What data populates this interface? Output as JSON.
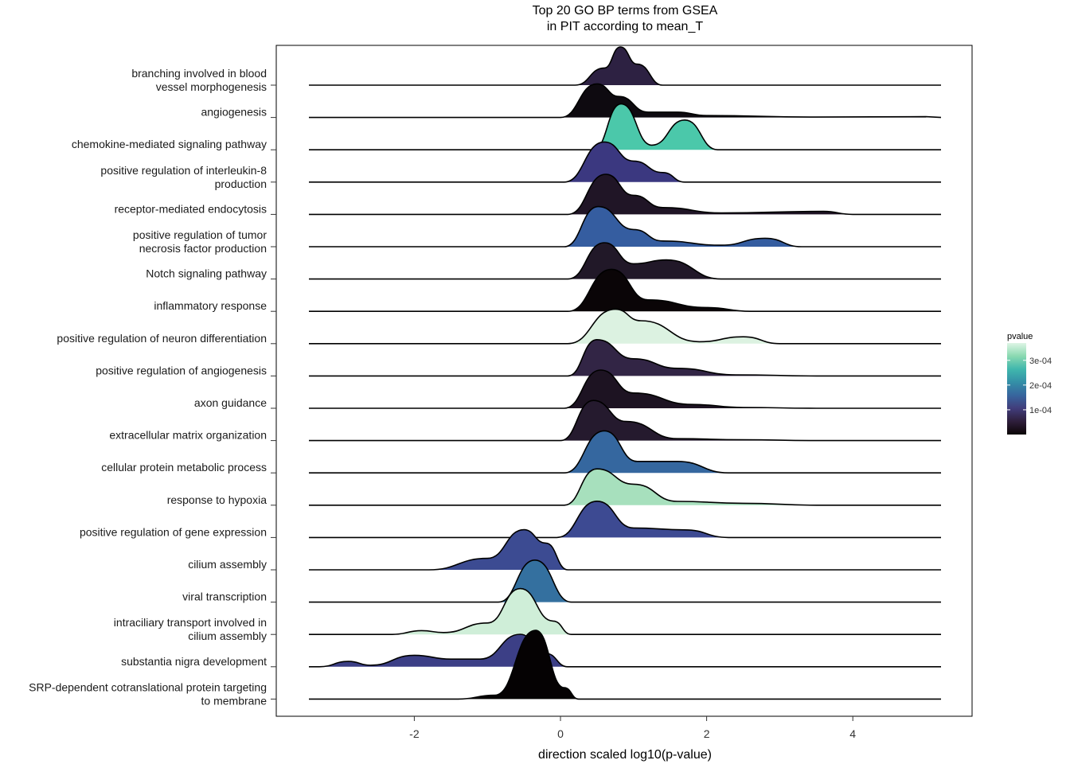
{
  "chart_data": {
    "type": "ridgeline",
    "title": [
      "Top 20 GO BP terms from GSEA",
      "in PIT according to mean_T"
    ],
    "xlabel": "direction scaled log10(p-value)",
    "ylabel": "",
    "xlim": [
      -3.9,
      5.6
    ],
    "x_ticks": [
      -2,
      0,
      2,
      4
    ],
    "x_tick_labels": [
      "-2",
      "0",
      "2",
      "4"
    ],
    "grid": false,
    "legend": {
      "title": "pvalue",
      "position": "right",
      "ticks": [
        0.0001,
        0.0002,
        0.0003
      ],
      "tick_labels": [
        "1e-04",
        "2e-04",
        "3e-04"
      ],
      "range": [
        0,
        0.00037
      ],
      "colors": [
        "#0b0405",
        "#2e1e3b",
        "#413d7b",
        "#37659e",
        "#348fa7",
        "#40b7ad",
        "#8ad9b1",
        "#def5e5"
      ]
    },
    "series": [
      {
        "term": [
          "branching involved in blood",
          "vessel morphogenesis"
        ],
        "pvalue": 8.5e-05,
        "color": "#2d2142",
        "density": [
          [
            0.2,
            0
          ],
          [
            0.6,
            0.45
          ],
          [
            0.82,
            1.0
          ],
          [
            1.05,
            0.55
          ],
          [
            1.4,
            0
          ]
        ]
      },
      {
        "term": [
          "angiogenesis"
        ],
        "pvalue": 2e-05,
        "color": "#0e0a10",
        "density": [
          [
            0.0,
            0
          ],
          [
            0.5,
            0.88
          ],
          [
            0.8,
            0.55
          ],
          [
            1.2,
            0.14
          ],
          [
            1.6,
            0.14
          ],
          [
            2.0,
            0.05
          ],
          [
            3.5,
            0.01
          ],
          [
            5.0,
            0.02
          ]
        ]
      },
      {
        "term": [
          "chemokine-mediated signaling pathway"
        ],
        "pvalue": 0.00032,
        "color": "#4bc8aa",
        "density": [
          [
            0.45,
            0
          ],
          [
            0.83,
            1.2
          ],
          [
            1.25,
            0.12
          ],
          [
            1.7,
            0.78
          ],
          [
            2.15,
            0
          ]
        ]
      },
      {
        "term": [
          "positive regulation of interleukin-8",
          "production"
        ],
        "pvalue": 0.00014,
        "color": "#3b3880",
        "density": [
          [
            0.05,
            0
          ],
          [
            0.6,
            1.05
          ],
          [
            1.0,
            0.55
          ],
          [
            1.4,
            0.25
          ],
          [
            1.7,
            0
          ]
        ]
      },
      {
        "term": [
          "receptor-mediated endocytosis"
        ],
        "pvalue": 5e-05,
        "color": "#201526",
        "density": [
          [
            0.1,
            0
          ],
          [
            0.62,
            1.05
          ],
          [
            1.0,
            0.5
          ],
          [
            1.4,
            0.18
          ],
          [
            2.2,
            0.04
          ],
          [
            3.6,
            0.08
          ],
          [
            4.0,
            0
          ]
        ]
      },
      {
        "term": [
          "positive regulation of tumor",
          "necrosis factor production"
        ],
        "pvalue": 0.00021,
        "color": "#355da0",
        "density": [
          [
            0.05,
            0
          ],
          [
            0.52,
            1.05
          ],
          [
            1.0,
            0.45
          ],
          [
            1.4,
            0.15
          ],
          [
            2.2,
            0.04
          ],
          [
            2.8,
            0.22
          ],
          [
            3.3,
            0
          ]
        ]
      },
      {
        "term": [
          "Notch signaling pathway"
        ],
        "pvalue": 6e-05,
        "color": "#211828",
        "density": [
          [
            0.1,
            0
          ],
          [
            0.6,
            0.95
          ],
          [
            1.0,
            0.4
          ],
          [
            1.45,
            0.5
          ],
          [
            2.2,
            0
          ]
        ]
      },
      {
        "term": [
          "inflammatory response"
        ],
        "pvalue": 5e-06,
        "color": "#0a0507",
        "density": [
          [
            0.1,
            0
          ],
          [
            0.7,
            1.1
          ],
          [
            1.2,
            0.3
          ],
          [
            2.0,
            0.1
          ],
          [
            2.6,
            0
          ]
        ]
      },
      {
        "term": [
          "positive regulation of neuron differentiation"
        ],
        "pvalue": 0.00037,
        "color": "#dcf2e1",
        "density": [
          [
            0.1,
            0
          ],
          [
            0.75,
            0.9
          ],
          [
            1.1,
            0.6
          ],
          [
            1.9,
            0.05
          ],
          [
            2.5,
            0.18
          ],
          [
            3.0,
            0
          ]
        ]
      },
      {
        "term": [
          "positive regulation of angiogenesis"
        ],
        "pvalue": 9e-05,
        "color": "#322545",
        "density": [
          [
            0.1,
            0
          ],
          [
            0.5,
            0.95
          ],
          [
            1.0,
            0.45
          ],
          [
            1.6,
            0.2
          ],
          [
            2.4,
            0.03
          ],
          [
            3.5,
            0
          ]
        ]
      },
      {
        "term": [
          "axon guidance"
        ],
        "pvalue": 4e-05,
        "color": "#1d1322",
        "density": [
          [
            0.05,
            0
          ],
          [
            0.55,
            1.0
          ],
          [
            1.0,
            0.4
          ],
          [
            1.8,
            0.1
          ],
          [
            2.5,
            0.02
          ],
          [
            3.5,
            0
          ]
        ]
      },
      {
        "term": [
          "extracellular matrix organization"
        ],
        "pvalue": 5e-05,
        "color": "#251a2e",
        "density": [
          [
            0.0,
            0
          ],
          [
            0.45,
            1.05
          ],
          [
            0.9,
            0.5
          ],
          [
            1.6,
            0.05
          ],
          [
            2.5,
            0.02
          ],
          [
            3.5,
            0
          ]
        ]
      },
      {
        "term": [
          "cellular protein metabolic process"
        ],
        "pvalue": 0.00022,
        "color": "#35679f",
        "density": [
          [
            0.05,
            0
          ],
          [
            0.6,
            1.1
          ],
          [
            1.05,
            0.3
          ],
          [
            1.6,
            0.3
          ],
          [
            2.3,
            0
          ]
        ]
      },
      {
        "term": [
          "response to hypoxia"
        ],
        "pvalue": 0.00034,
        "color": "#a7e0bd",
        "density": [
          [
            0.05,
            0
          ],
          [
            0.5,
            0.95
          ],
          [
            1.0,
            0.55
          ],
          [
            1.6,
            0.1
          ],
          [
            2.5,
            0.05
          ],
          [
            3.5,
            0
          ]
        ]
      },
      {
        "term": [
          "positive regulation of gene expression"
        ],
        "pvalue": 0.00017,
        "color": "#3d4a92",
        "density": [
          [
            -0.05,
            0
          ],
          [
            0.5,
            0.95
          ],
          [
            1.0,
            0.25
          ],
          [
            1.7,
            0.2
          ],
          [
            2.3,
            0
          ]
        ]
      },
      {
        "term": [
          "cilium assembly"
        ],
        "pvalue": 0.00018,
        "color": "#3c4b92",
        "density": [
          [
            -1.8,
            0
          ],
          [
            -1.0,
            0.3
          ],
          [
            -0.5,
            1.05
          ],
          [
            -0.2,
            0.7
          ],
          [
            0.1,
            0
          ]
        ]
      },
      {
        "term": [
          "viral transcription"
        ],
        "pvalue": 0.00023,
        "color": "#34709f",
        "density": [
          [
            -0.85,
            0
          ],
          [
            -0.35,
            1.1
          ],
          [
            0.15,
            0
          ]
        ]
      },
      {
        "term": [
          "intraciliary transport involved in",
          "cilium assembly"
        ],
        "pvalue": 0.00036,
        "color": "#cfeed8",
        "density": [
          [
            -2.3,
            0
          ],
          [
            -1.9,
            0.1
          ],
          [
            -1.6,
            0.05
          ],
          [
            -1.0,
            0.3
          ],
          [
            -0.55,
            1.2
          ],
          [
            -0.1,
            0.35
          ],
          [
            0.15,
            0
          ]
        ]
      },
      {
        "term": [
          "substantia nigra development"
        ],
        "pvalue": 0.00015,
        "color": "#3c3f86",
        "density": [
          [
            -3.3,
            0
          ],
          [
            -2.9,
            0.14
          ],
          [
            -2.6,
            0.04
          ],
          [
            -2.0,
            0.3
          ],
          [
            -1.5,
            0.2
          ],
          [
            -1.1,
            0.2
          ],
          [
            -0.55,
            0.85
          ],
          [
            -0.2,
            0.35
          ],
          [
            0.1,
            0
          ]
        ]
      },
      {
        "term": [
          "SRP-dependent cotranslational protein targeting",
          "to membrane"
        ],
        "pvalue": 1e-06,
        "color": "#050203",
        "density": [
          [
            -1.4,
            0
          ],
          [
            -0.9,
            0.1
          ],
          [
            -0.34,
            1.8
          ],
          [
            0.05,
            0.3
          ],
          [
            0.25,
            0
          ]
        ]
      }
    ]
  }
}
